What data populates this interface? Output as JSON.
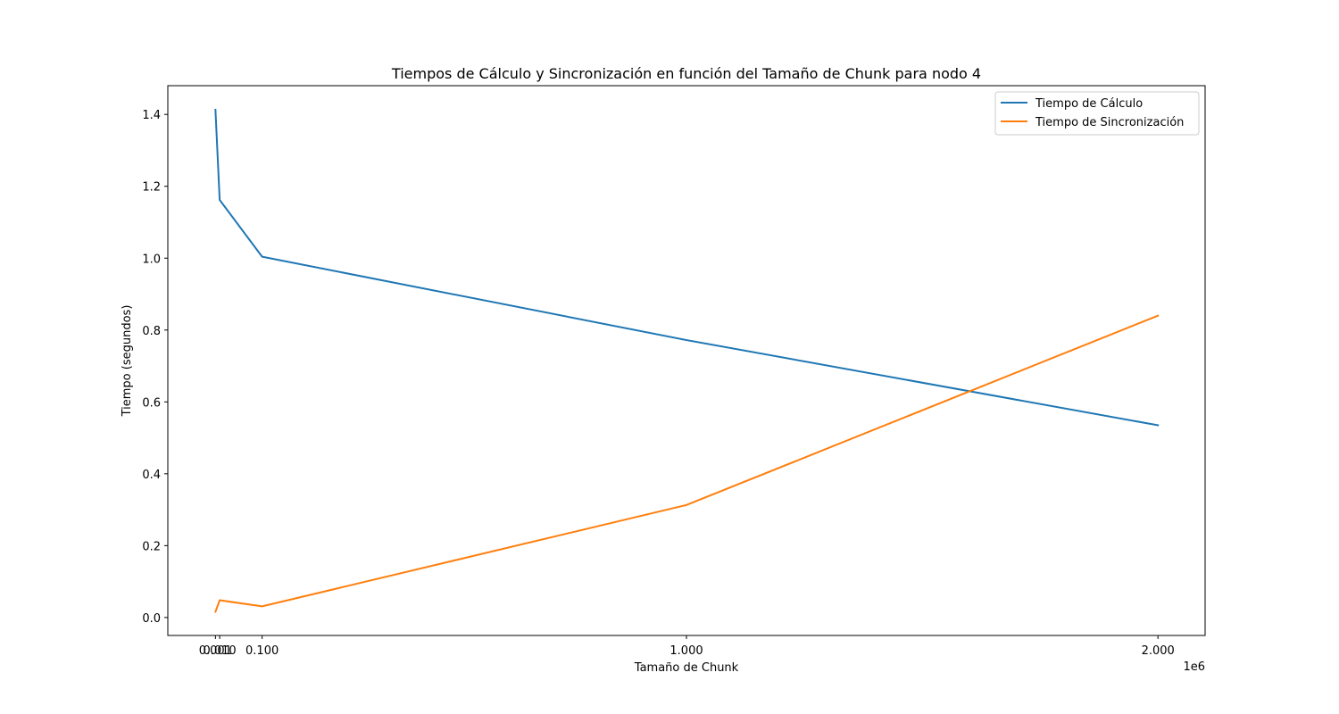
{
  "chart_data": {
    "type": "line",
    "title": "Tiempos de Cálculo y Sincronización en función del Tamaño de Chunk para nodo 4",
    "xlabel": "Tamaño de Chunk",
    "ylabel": "Tiempo (segundos)",
    "x_offset_label": "1e6",
    "x": [
      1000,
      10000,
      100000,
      1000000,
      2000000
    ],
    "xlim": [
      -100000,
      2100000
    ],
    "ylim": [
      -0.05,
      1.48
    ],
    "x_ticks": [
      {
        "value": 1000,
        "label": "0.001"
      },
      {
        "value": 10000,
        "label": "0.010"
      },
      {
        "value": 100000,
        "label": "0.100"
      },
      {
        "value": 1000000,
        "label": "1.000"
      },
      {
        "value": 2000000,
        "label": "2.000"
      }
    ],
    "y_ticks": [
      {
        "value": 0.0,
        "label": "0.0"
      },
      {
        "value": 0.2,
        "label": "0.2"
      },
      {
        "value": 0.4,
        "label": "0.4"
      },
      {
        "value": 0.6,
        "label": "0.6"
      },
      {
        "value": 0.8,
        "label": "0.8"
      },
      {
        "value": 1.0,
        "label": "1.0"
      },
      {
        "value": 1.2,
        "label": "1.2"
      },
      {
        "value": 1.4,
        "label": "1.4"
      }
    ],
    "series": [
      {
        "name": "Tiempo de Cálculo",
        "color": "#1f77b4",
        "values": [
          1.413,
          1.162,
          1.004,
          0.772,
          0.535
        ]
      },
      {
        "name": "Tiempo de Sincronización",
        "color": "#ff7f0e",
        "values": [
          0.016,
          0.048,
          0.031,
          0.313,
          0.84
        ]
      }
    ],
    "legend": "upper-right",
    "grid": false
  }
}
